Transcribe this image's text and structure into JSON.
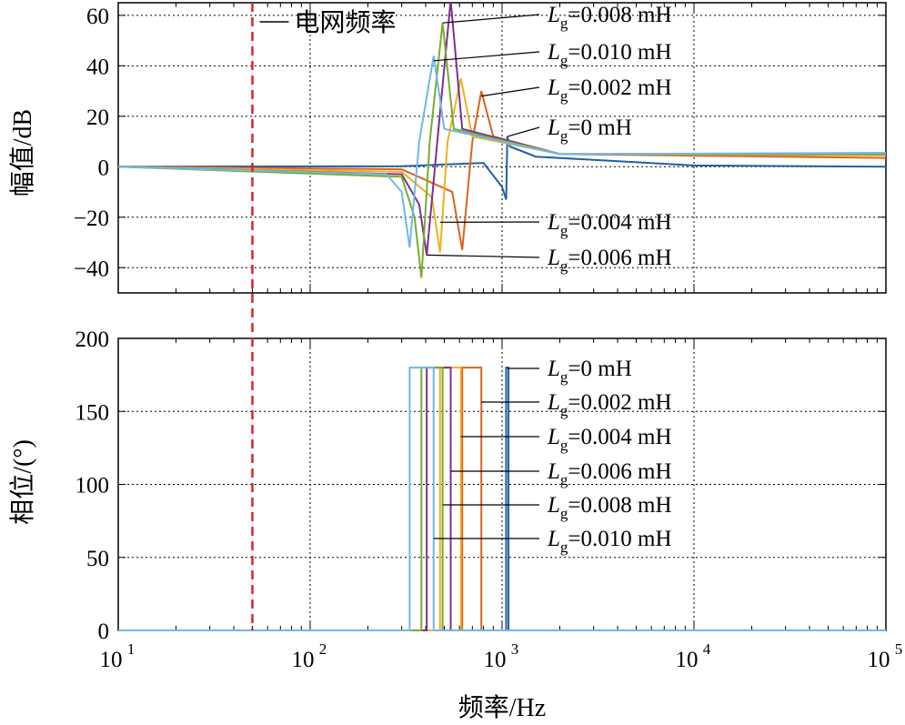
{
  "chart_data": [
    {
      "type": "line",
      "panel": "magnitude",
      "ylabel": "幅值/dB",
      "xscale": "log",
      "xlim": [
        10,
        100000
      ],
      "ylim": [
        -50,
        65
      ],
      "yticks": [
        60,
        40,
        20,
        0,
        -20,
        -40
      ],
      "ytick_labels": [
        "60",
        "40",
        "20",
        "0",
        "−20",
        "−40"
      ],
      "grid": true,
      "grid_freq_label": "电网频率",
      "grid_freq_value": 50,
      "grid_freq_color": "#d62728",
      "series": [
        {
          "name": "Lg=0 mH",
          "color": "#1f5fa8",
          "points": [
            [
              10,
              0
            ],
            [
              300,
              0.2
            ],
            [
              800,
              1.5
            ],
            [
              1000,
              -8
            ],
            [
              1050,
              -13
            ],
            [
              1065,
              12
            ],
            [
              1100,
              8
            ],
            [
              1500,
              4
            ],
            [
              10000,
              0.5
            ],
            [
              100000,
              0
            ]
          ]
        },
        {
          "name": "Lg=0.002 mH",
          "color": "#d9631f",
          "points": [
            [
              10,
              0
            ],
            [
              300,
              -1
            ],
            [
              550,
              -10
            ],
            [
              620,
              -33
            ],
            [
              700,
              10
            ],
            [
              780,
              30
            ],
            [
              900,
              12
            ],
            [
              2000,
              5
            ],
            [
              100000,
              3.5
            ]
          ]
        },
        {
          "name": "Lg=0.004 mH",
          "color": "#edb120",
          "points": [
            [
              10,
              0
            ],
            [
              300,
              -2
            ],
            [
              430,
              -12
            ],
            [
              475,
              -34
            ],
            [
              520,
              10
            ],
            [
              610,
              35
            ],
            [
              700,
              12
            ],
            [
              2000,
              5
            ],
            [
              100000,
              4.5
            ]
          ]
        },
        {
          "name": "Lg=0.006 mH",
          "color": "#7e2f8e",
          "points": [
            [
              10,
              0
            ],
            [
              300,
              -3
            ],
            [
              370,
              -15
            ],
            [
              405,
              -35
            ],
            [
              460,
              10
            ],
            [
              540,
              66
            ],
            [
              620,
              15
            ],
            [
              2000,
              5
            ],
            [
              100000,
              5
            ]
          ]
        },
        {
          "name": "Lg=0.008 mH",
          "color": "#77ac30",
          "points": [
            [
              10,
              0
            ],
            [
              300,
              -4
            ],
            [
              350,
              -20
            ],
            [
              380,
              -44
            ],
            [
              420,
              10
            ],
            [
              490,
              57
            ],
            [
              560,
              15
            ],
            [
              2000,
              5
            ],
            [
              100000,
              5
            ]
          ]
        },
        {
          "name": "Lg=0.010 mH",
          "color": "#6fb8e8",
          "points": [
            [
              10,
              0
            ],
            [
              250,
              -3
            ],
            [
              300,
              -10
            ],
            [
              330,
              -32
            ],
            [
              370,
              10
            ],
            [
              440,
              44
            ],
            [
              500,
              15
            ],
            [
              2000,
              5
            ],
            [
              100000,
              5.5
            ]
          ]
        }
      ],
      "annotations": [
        {
          "label": "0.008 mH",
          "target": [
            490,
            57
          ]
        },
        {
          "label": "0.010 mH",
          "target": [
            440,
            42
          ]
        },
        {
          "label": "0.002 mH",
          "target": [
            780,
            28
          ]
        },
        {
          "label": "0 mH",
          "target": [
            1065,
            12
          ]
        },
        {
          "label": "0.004 mH",
          "target": [
            475,
            -22
          ]
        },
        {
          "label": "0.006 mH",
          "target": [
            405,
            -35
          ]
        }
      ]
    },
    {
      "type": "line",
      "panel": "phase",
      "xlabel": "频率/Hz",
      "ylabel": "相位/(°)",
      "xscale": "log",
      "xlim": [
        10,
        100000
      ],
      "ylim": [
        0,
        200
      ],
      "yticks": [
        200,
        150,
        100,
        50,
        0
      ],
      "grid": true,
      "xticks": [
        {
          "base": "10",
          "exp": "1"
        },
        {
          "base": "10",
          "exp": "2"
        },
        {
          "base": "10",
          "exp": "3"
        },
        {
          "base": "10",
          "exp": "4"
        },
        {
          "base": "10",
          "exp": "5"
        }
      ],
      "series": [
        {
          "name": "Lg=0 mH",
          "color": "#1f5fa8",
          "band": [
            1050,
            1080
          ],
          "value": 180
        },
        {
          "name": "Lg=0.002 mH",
          "color": "#d9631f",
          "band": [
            620,
            780
          ],
          "value": 180
        },
        {
          "name": "Lg=0.004 mH",
          "color": "#edb120",
          "band": [
            475,
            610
          ],
          "value": 180
        },
        {
          "name": "Lg=0.006 mH",
          "color": "#7e2f8e",
          "band": [
            405,
            540
          ],
          "value": 180
        },
        {
          "name": "Lg=0.008 mH",
          "color": "#77ac30",
          "band": [
            380,
            490
          ],
          "value": 180
        },
        {
          "name": "Lg=0.010 mH",
          "color": "#6fb8e8",
          "band": [
            330,
            440
          ],
          "value": 180
        }
      ],
      "annotations": [
        {
          "label": "0 mH",
          "target": [
            1065,
            180
          ]
        },
        {
          "label": "0.002 mH",
          "target": [
            780,
            158
          ]
        },
        {
          "label": "0.004 mH",
          "target": [
            610,
            134
          ]
        },
        {
          "label": "0.006 mH",
          "target": [
            540,
            110
          ]
        },
        {
          "label": "0.008 mH",
          "target": [
            490,
            86
          ]
        },
        {
          "label": "0.010 mH",
          "target": [
            440,
            64
          ]
        }
      ]
    }
  ],
  "legend_symbol": "L",
  "legend_subscript": "g",
  "legend_prefix": "="
}
